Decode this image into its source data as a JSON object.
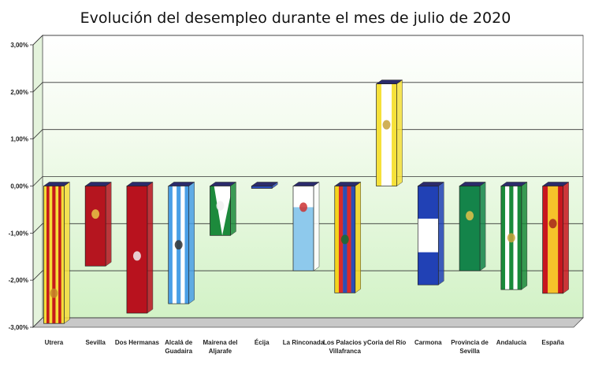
{
  "chart_data": {
    "type": "bar",
    "title": "Evolución del desempleo durante el mes de julio de 2020",
    "xlabel": "",
    "ylabel": "",
    "ylim": [
      -3,
      3
    ],
    "yticks": [
      "3,00%",
      "2,00%",
      "1,00%",
      "0,00%",
      "-1,00%",
      "-2,00%",
      "-3,00%"
    ],
    "grid": true,
    "categories": [
      {
        "label": [
          "Utrera"
        ],
        "value": -2.92,
        "flag": "utrera"
      },
      {
        "label": [
          "Sevilla"
        ],
        "value": -1.7,
        "flag": "sevilla"
      },
      {
        "label": [
          "Dos Hermanas"
        ],
        "value": -2.7,
        "flag": "dos-hermanas"
      },
      {
        "label": [
          "Alcalá de",
          "Guadaira"
        ],
        "value": -2.5,
        "flag": "alcala"
      },
      {
        "label": [
          "Mairena del",
          "Aljarafe"
        ],
        "value": -1.05,
        "flag": "mairena"
      },
      {
        "label": [
          "Écija"
        ],
        "value": -0.05,
        "flag": "ecija"
      },
      {
        "label": [
          "La Rinconada"
        ],
        "value": -1.8,
        "flag": "rinconada"
      },
      {
        "label": [
          "Los Palacios y",
          "Villafranca"
        ],
        "value": -2.27,
        "flag": "palacios"
      },
      {
        "label": [
          "Coria del Río"
        ],
        "value": 2.17,
        "flag": "coria"
      },
      {
        "label": [
          "Carmona"
        ],
        "value": -2.1,
        "flag": "carmona"
      },
      {
        "label": [
          "Provincia de",
          "Sevilla"
        ],
        "value": -1.8,
        "flag": "provincia"
      },
      {
        "label": [
          "Andalucía"
        ],
        "value": -2.2,
        "flag": "andalucia"
      },
      {
        "label": [
          "España"
        ],
        "value": -2.28,
        "flag": "espana"
      }
    ]
  }
}
